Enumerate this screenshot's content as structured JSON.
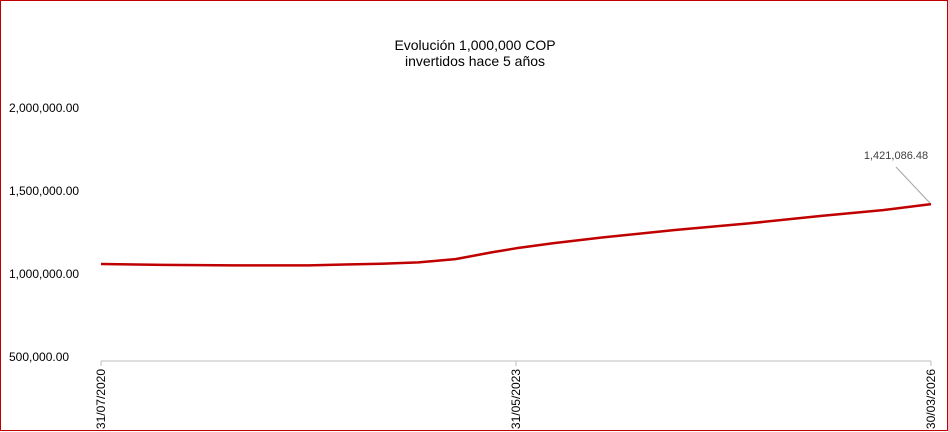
{
  "chart_data": {
    "type": "line",
    "title": "Evolución 1,000,000 COP",
    "subtitle": "invertidos hace 5 años",
    "xlabel": "",
    "ylabel": "",
    "ylim": [
      500000,
      2000000
    ],
    "yticks": [
      "2,000,000.00",
      "1,500,000.00",
      "1,000,000.00",
      "500,000.00"
    ],
    "ytick_values": [
      2000000,
      1500000,
      1000000,
      500000
    ],
    "xtick_labels": [
      "31/07/2020",
      "31/05/2023",
      "30/03/2026"
    ],
    "grid": false,
    "legend": "none",
    "line_color": "#c00000",
    "series": [
      {
        "x": [
          "31/07/2020",
          "31/12/2020",
          "30/06/2021",
          "31/12/2021",
          "31/03/2022",
          "30/06/2022",
          "30/09/2022",
          "31/12/2022",
          "31/03/2023",
          "31/05/2023",
          "31/08/2023",
          "31/12/2023",
          "30/06/2024",
          "31/12/2024",
          "30/06/2025",
          "30/11/2025",
          "30/03/2026"
        ],
        "values": [
          1060000,
          1055000,
          1052000,
          1052000,
          1057000,
          1062000,
          1070000,
          1090000,
          1130000,
          1155000,
          1185000,
          1220000,
          1265000,
          1305000,
          1350000,
          1385000,
          1421086.48
        ]
      }
    ],
    "annotations": [
      {
        "text": "1,421,086.48",
        "x": "30/03/2026",
        "value": 1421086.48
      }
    ]
  }
}
